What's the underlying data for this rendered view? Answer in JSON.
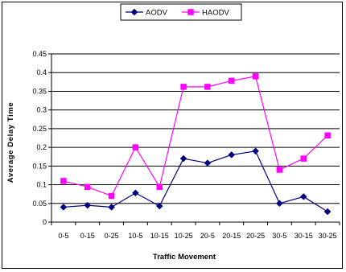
{
  "chart_data": {
    "type": "line",
    "title": "",
    "xlabel": "Traffic Movement",
    "ylabel": "Average Delay Time",
    "categories": [
      "0-5",
      "0-15",
      "0-25",
      "10-5",
      "10-15",
      "10-25",
      "20-5",
      "20-15",
      "20-25",
      "30-5",
      "30-15",
      "30-25"
    ],
    "ylim": [
      0,
      0.45
    ],
    "yticks": [
      "0",
      "0.05",
      "0.1",
      "0.15",
      "0.2",
      "0.25",
      "0.3",
      "0.35",
      "0.4",
      "0.45"
    ],
    "grid": true,
    "legend": "top",
    "series": [
      {
        "name": "AODV",
        "color": "#000080",
        "marker": "diamond",
        "values": [
          0.04,
          0.045,
          0.04,
          0.078,
          0.043,
          0.17,
          0.158,
          0.18,
          0.19,
          0.05,
          0.068,
          0.028
        ]
      },
      {
        "name": "HAODV",
        "color": "#ff00ff",
        "marker": "square",
        "values": [
          0.11,
          0.094,
          0.07,
          0.2,
          0.094,
          0.362,
          0.362,
          0.378,
          0.39,
          0.14,
          0.17,
          0.232
        ]
      }
    ]
  }
}
